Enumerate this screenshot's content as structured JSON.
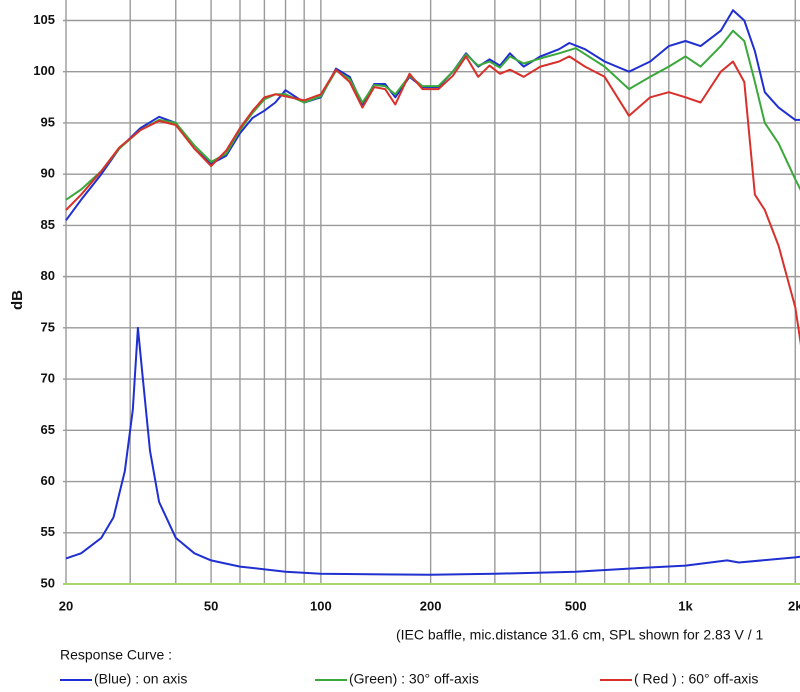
{
  "chart_data": {
    "type": "line",
    "y_label": "dB",
    "note": "(IEC baffle, mic.distance 31.6 cm, SPL shown for 2.83 V / 1",
    "legend_title": "Response Curve :",
    "log_x": true,
    "grid": true,
    "xlim": [
      20,
      2100
    ],
    "ylim": [
      50,
      107
    ],
    "xticks": [
      20,
      50,
      100,
      200,
      500,
      {
        "value": 1000,
        "label": "1k"
      },
      {
        "value": 2000,
        "label": "2k"
      }
    ],
    "xticks_minor": [
      30,
      40,
      60,
      70,
      80,
      90,
      300,
      400,
      600,
      700,
      800,
      900
    ],
    "yticks": [
      50,
      55,
      60,
      65,
      70,
      75,
      80,
      85,
      90,
      95,
      100,
      105
    ],
    "series": [
      {
        "name": "(Blue)  : on axis",
        "color": "#1f2fd0",
        "x": [
          20,
          22,
          25,
          28,
          32,
          36,
          40,
          45,
          50,
          55,
          60,
          65,
          70,
          75,
          80,
          90,
          100,
          110,
          120,
          130,
          140,
          150,
          160,
          175,
          190,
          210,
          230,
          250,
          270,
          290,
          310,
          330,
          360,
          400,
          450,
          480,
          530,
          600,
          700,
          800,
          900,
          1000,
          1100,
          1250,
          1350,
          1450,
          1550,
          1650,
          1800,
          2000,
          2100
        ],
        "values": [
          85.5,
          87.5,
          90,
          92.5,
          94.5,
          95.6,
          95,
          92.5,
          91,
          91.8,
          94,
          95.5,
          96.2,
          97,
          98.2,
          97,
          97.5,
          100.3,
          99.5,
          96.8,
          98.8,
          98.8,
          97.5,
          99.5,
          98.5,
          98.5,
          100,
          101.8,
          100.5,
          101.2,
          100.6,
          101.8,
          100.5,
          101.5,
          102.2,
          102.8,
          102.2,
          101,
          100,
          101,
          102.5,
          103,
          102.5,
          104,
          106,
          105,
          102,
          98,
          96.5,
          95.3,
          95.3
        ]
      },
      {
        "name": "(Green) : 30° off-axis",
        "color": "#3aa83a",
        "x": [
          20,
          22,
          25,
          28,
          32,
          36,
          40,
          45,
          50,
          55,
          60,
          65,
          70,
          75,
          80,
          90,
          100,
          110,
          120,
          130,
          140,
          150,
          160,
          175,
          190,
          210,
          230,
          250,
          270,
          290,
          310,
          330,
          360,
          400,
          450,
          500,
          600,
          700,
          800,
          900,
          1000,
          1100,
          1250,
          1350,
          1450,
          1550,
          1650,
          1800,
          2000,
          2100
        ],
        "values": [
          87.5,
          88.5,
          90.3,
          92.5,
          94.3,
          95.3,
          95,
          92.8,
          91.2,
          92,
          94.3,
          96,
          97.3,
          97.8,
          97.8,
          97,
          97.6,
          100.1,
          99.3,
          97,
          98.7,
          98.6,
          97.8,
          99.6,
          98.6,
          98.6,
          100,
          101.7,
          100.6,
          101,
          100.4,
          101.5,
          100.8,
          101.3,
          101.8,
          102.3,
          100.5,
          98.3,
          99.5,
          100.5,
          101.5,
          100.5,
          102.5,
          104,
          103,
          99,
          95,
          93,
          89.5,
          88
        ]
      },
      {
        "name": "( Red ) : 60° off-axis",
        "color": "#d8302a",
        "x": [
          20,
          22,
          25,
          28,
          32,
          36,
          40,
          45,
          50,
          55,
          60,
          65,
          70,
          75,
          80,
          90,
          100,
          110,
          120,
          130,
          140,
          150,
          160,
          175,
          190,
          210,
          230,
          250,
          270,
          290,
          310,
          330,
          360,
          400,
          450,
          480,
          530,
          600,
          700,
          800,
          900,
          1000,
          1100,
          1250,
          1350,
          1450,
          1550,
          1650,
          1800,
          2000,
          2100
        ],
        "values": [
          86.5,
          88,
          90.3,
          92.6,
          94.3,
          95.2,
          94.8,
          92.5,
          90.8,
          92.3,
          94.5,
          96.2,
          97.5,
          97.8,
          97.6,
          97.2,
          97.8,
          100.2,
          99,
          96.5,
          98.5,
          98.3,
          96.8,
          99.8,
          98.3,
          98.3,
          99.6,
          101.5,
          99.5,
          100.6,
          99.8,
          100.2,
          99.5,
          100.5,
          101,
          101.5,
          100.5,
          99.5,
          95.7,
          97.5,
          98,
          97.5,
          97,
          100,
          101,
          99,
          88,
          86.5,
          83,
          77,
          72
        ]
      },
      {
        "color": "#1f2fd0",
        "x": [
          20,
          22,
          25,
          27,
          29,
          30.5,
          31.5,
          32.5,
          34,
          36,
          40,
          45,
          50,
          60,
          80,
          100,
          200,
          300,
          500,
          700,
          1000,
          1300,
          1400,
          2000,
          2100
        ],
        "values": [
          52.5,
          53,
          54.5,
          56.5,
          61,
          67,
          75,
          70,
          63,
          58,
          54.5,
          53,
          52.3,
          51.7,
          51.2,
          51,
          50.9,
          51,
          51.2,
          51.5,
          51.8,
          52.3,
          52.1,
          52.6,
          52.7
        ]
      }
    ]
  }
}
